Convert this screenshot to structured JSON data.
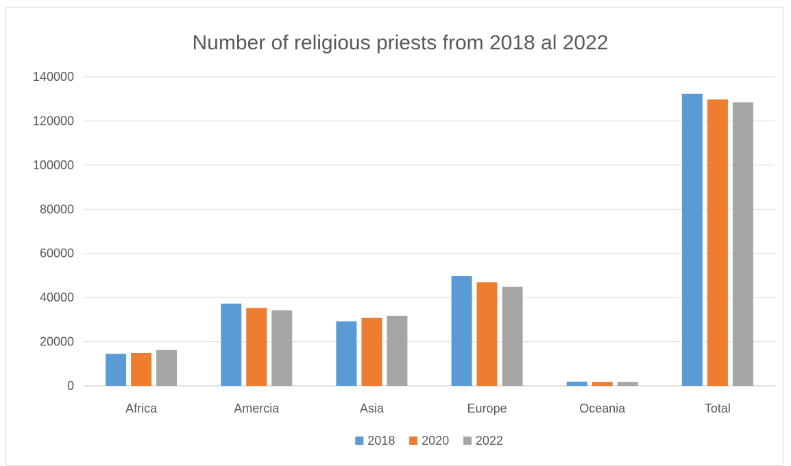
{
  "chart_data": {
    "type": "bar",
    "title": "Number of religious priests from 2018 al 2022",
    "xlabel": "",
    "ylabel": "",
    "categories": [
      "Africa",
      "Amercia",
      "Asia",
      "Europe",
      "Oceania",
      "Total"
    ],
    "series": [
      {
        "name": "2018",
        "color": "#5B9BD5",
        "values": [
          14500,
          37200,
          29200,
          49700,
          1900,
          132300
        ]
      },
      {
        "name": "2020",
        "color": "#ED7D31",
        "values": [
          14900,
          35300,
          30800,
          46900,
          1800,
          129700
        ]
      },
      {
        "name": "2022",
        "color": "#A5A5A5",
        "values": [
          16200,
          34200,
          31700,
          44800,
          1800,
          128400
        ]
      }
    ],
    "ylim": [
      0,
      140000
    ],
    "yticks": [
      "0",
      "20000",
      "40000",
      "60000",
      "80000",
      "100000",
      "120000",
      "140000"
    ],
    "grid": true,
    "legend_position": "bottom",
    "gridline_color": "#d9d9d9",
    "axis_color": "#bfbfbf"
  }
}
